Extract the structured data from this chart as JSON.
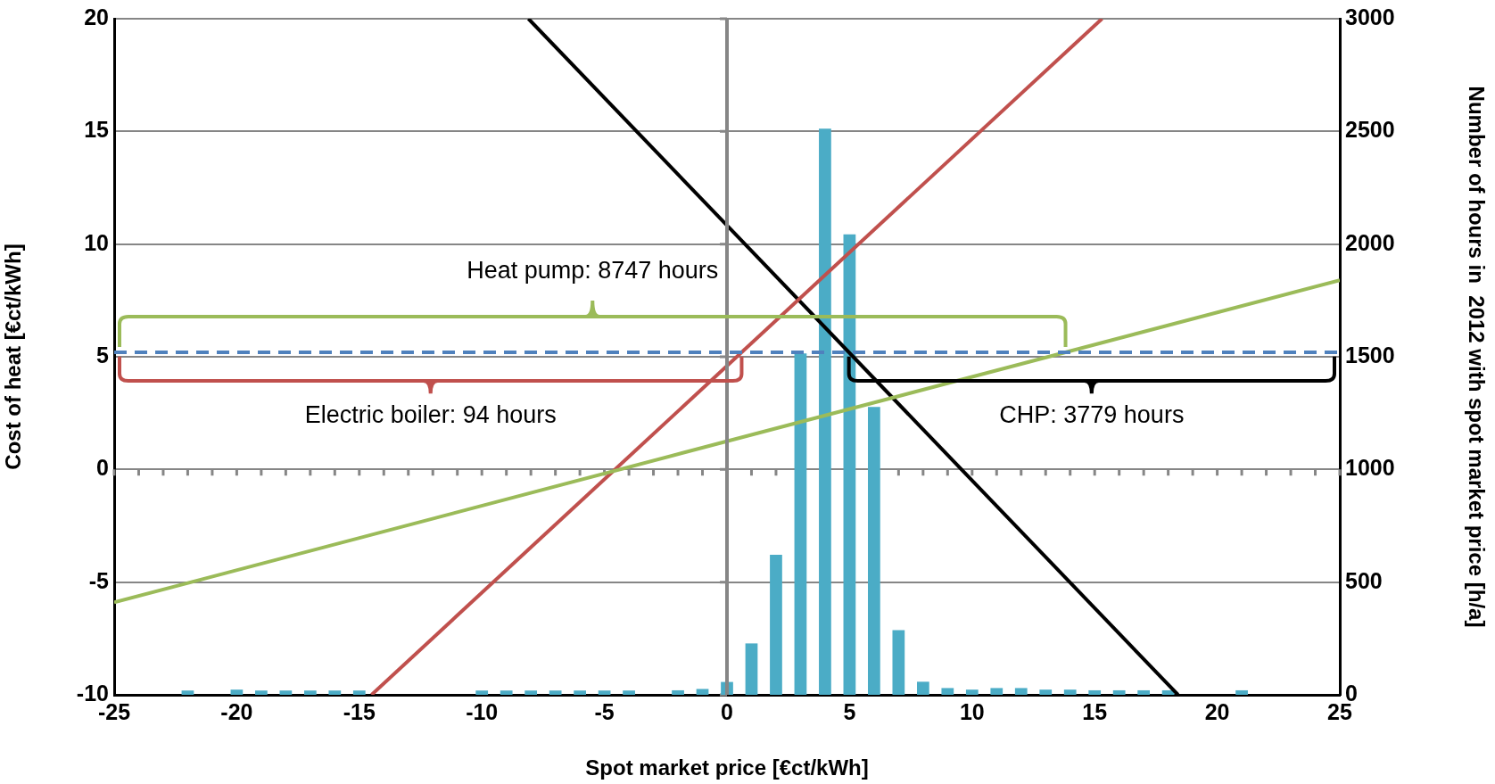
{
  "chart_data": {
    "type": "line",
    "xlabel": "Spot market price [€ct/kWh]",
    "ylabel": "Cost of heat [€ct/kWh]",
    "y2label": "Number of hours in  2012 with spot market price [h/a]",
    "xlim": [
      -25,
      25
    ],
    "xticks": [
      -25,
      -20,
      -15,
      -10,
      -5,
      0,
      5,
      10,
      15,
      20,
      25
    ],
    "ylim": [
      -10,
      20
    ],
    "yticks": [
      -10,
      -5,
      0,
      5,
      10,
      15,
      20
    ],
    "y2lim": [
      0,
      3000
    ],
    "y2ticks": [
      0,
      500,
      1000,
      1500,
      2000,
      2500,
      3000
    ],
    "grid": "y",
    "legend": false,
    "marker": "none",
    "series": [
      {
        "type": "bar",
        "axis": "y2",
        "color": "#4bacc6",
        "x": [
          -22,
          -20,
          -19,
          -18,
          -17,
          -16,
          -15,
          -10,
          -9,
          -8,
          -7,
          -6,
          -5,
          -4,
          -2,
          -1,
          0,
          1,
          2,
          3,
          4,
          5,
          6,
          7,
          8,
          9,
          10,
          11,
          12,
          13,
          14,
          15,
          16,
          17,
          18,
          21
        ],
        "values": [
          19,
          23,
          19,
          19,
          19,
          19,
          19,
          19,
          19,
          19,
          19,
          19,
          19,
          19,
          20,
          26,
          57,
          228,
          621,
          1515,
          2512,
          2043,
          1277,
          287,
          58,
          30,
          23,
          30,
          30,
          23,
          23,
          20,
          20,
          20,
          20,
          20
        ]
      },
      {
        "color": "#9bbb59",
        "x": [
          -25,
          25
        ],
        "values": [
          -5.9,
          8.4
        ]
      },
      {
        "color": "#c0504d",
        "x": [
          -14.5,
          15.3
        ],
        "values": [
          -10,
          20
        ]
      },
      {
        "color": "#000000",
        "x": [
          -8.1,
          18.4
        ],
        "values": [
          20,
          -10
        ]
      }
    ],
    "ref_lines": [
      {
        "axis": "x",
        "value": 0,
        "color": "#868686"
      },
      {
        "axis": "y",
        "value": 5.2,
        "color": "#4f81bd",
        "line_style": "dashed"
      }
    ],
    "annotations": [
      "Heat pump: 8747 hours",
      "Electric boiler: 94 hours",
      "CHP: 3779 hours"
    ]
  }
}
